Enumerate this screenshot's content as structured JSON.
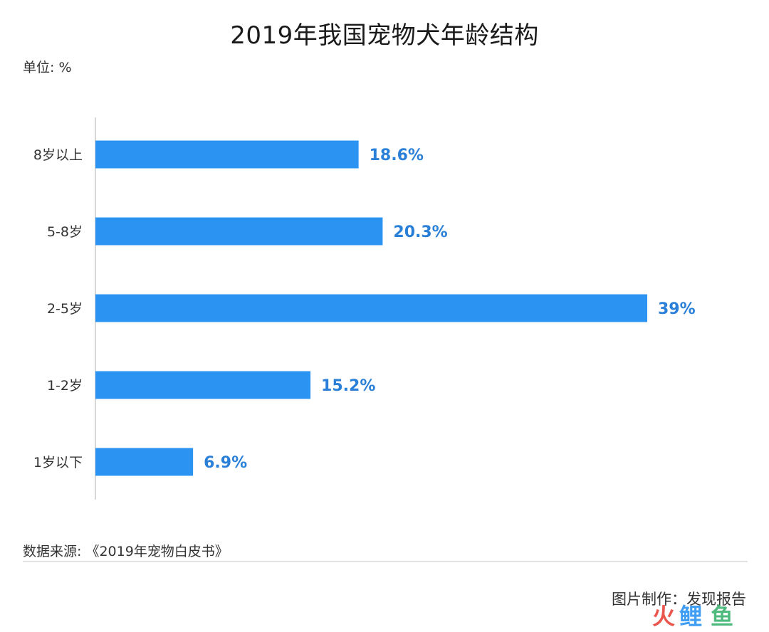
{
  "chart_data": {
    "type": "bar",
    "orientation": "horizontal",
    "title": "2019年我国宠物犬年龄结构",
    "unit_label": "单位: %",
    "categories": [
      "8岁以上",
      "5-8岁",
      "2-5岁",
      "1-2岁",
      "1岁以下"
    ],
    "values": [
      18.6,
      20.3,
      39,
      15.2,
      6.9
    ],
    "data_labels": [
      "18.6%",
      "20.3%",
      "39%",
      "15.2%",
      "6.9%"
    ],
    "bar_color": "#2b93f2",
    "label_color": "#2a80d8",
    "xlim": [
      0,
      39
    ],
    "grid": false,
    "legend": "none"
  },
  "footer": {
    "source": "数据来源: 《2019年宠物白皮书》",
    "credit": "图片制作：发现报告",
    "watermark": "火鲤鱼"
  }
}
